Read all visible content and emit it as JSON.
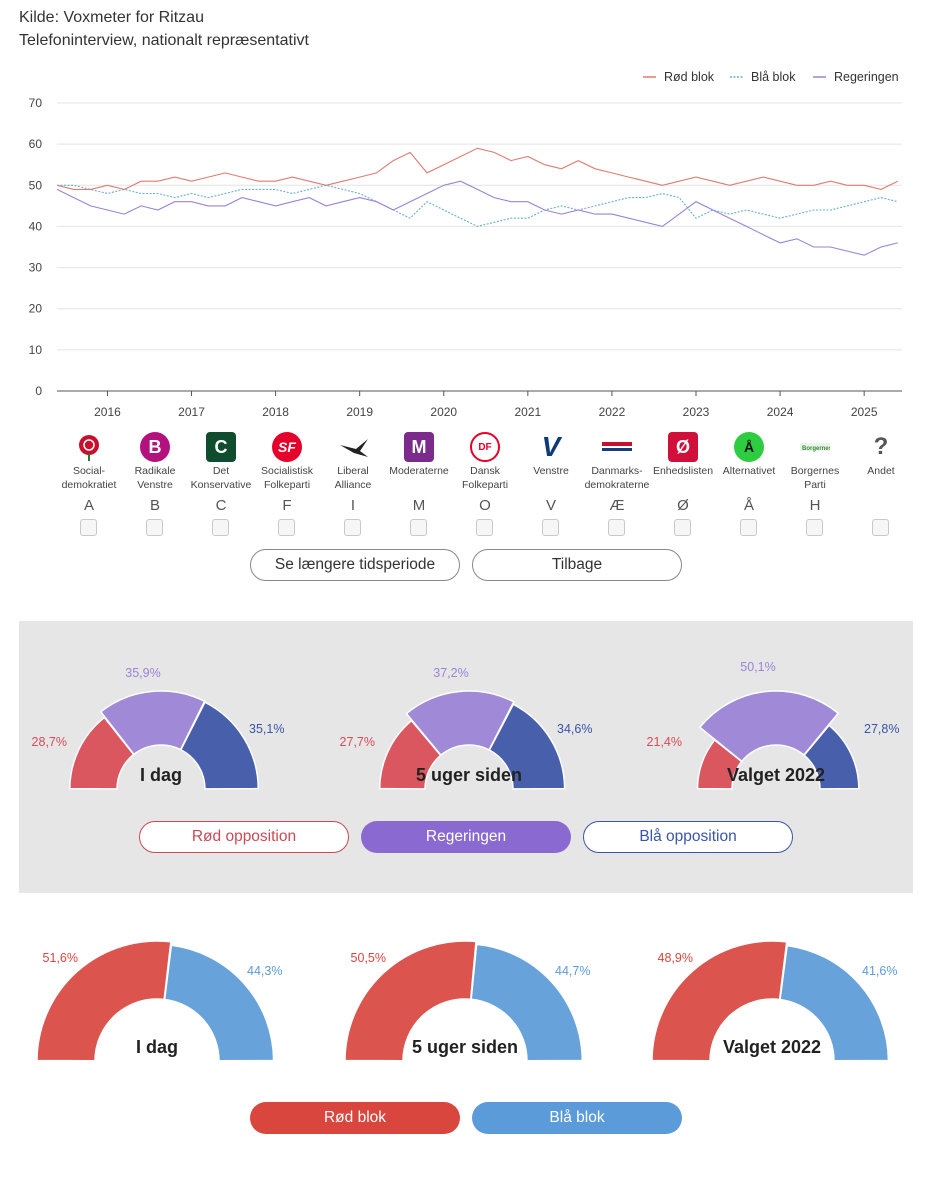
{
  "source": {
    "line1": "Kilde: Voxmeter for Ritzau",
    "line2": "Telefoninterview, nationalt repræsentativt"
  },
  "chart_data": {
    "type": "line",
    "title": "",
    "ylim": [
      0,
      70
    ],
    "yticks": [
      0,
      10,
      20,
      30,
      40,
      50,
      60,
      70
    ],
    "x_start": 2015.4,
    "x_end": 2025.45,
    "xticks": [
      2016,
      2017,
      2018,
      2019,
      2020,
      2021,
      2022,
      2023,
      2024,
      2025
    ],
    "grid": true,
    "legend_position": "top-right",
    "series": [
      {
        "name": "Rød blok",
        "color": "#e07b70",
        "x": [
          2015.4,
          2015.6,
          2015.8,
          2016.0,
          2016.2,
          2016.4,
          2016.6,
          2016.8,
          2017.0,
          2017.2,
          2017.4,
          2017.6,
          2017.8,
          2018.0,
          2018.2,
          2018.4,
          2018.6,
          2018.8,
          2019.0,
          2019.2,
          2019.4,
          2019.6,
          2019.8,
          2020.0,
          2020.2,
          2020.4,
          2020.6,
          2020.8,
          2021.0,
          2021.2,
          2021.4,
          2021.6,
          2021.8,
          2022.0,
          2022.2,
          2022.4,
          2022.6,
          2022.8,
          2023.0,
          2023.2,
          2023.4,
          2023.6,
          2023.8,
          2024.0,
          2024.2,
          2024.4,
          2024.6,
          2024.8,
          2025.0,
          2025.2,
          2025.4
        ],
        "values": [
          50,
          49,
          49,
          50,
          49,
          51,
          51,
          52,
          51,
          52,
          53,
          52,
          51,
          51,
          52,
          51,
          50,
          51,
          52,
          53,
          56,
          58,
          53,
          55,
          57,
          59,
          58,
          56,
          57,
          55,
          54,
          56,
          54,
          53,
          52,
          51,
          50,
          51,
          52,
          51,
          50,
          51,
          52,
          51,
          50,
          50,
          51,
          50,
          50,
          49,
          51
        ]
      },
      {
        "name": "Blå blok",
        "color": "#6aaed6",
        "x": [
          2015.4,
          2015.6,
          2015.8,
          2016.0,
          2016.2,
          2016.4,
          2016.6,
          2016.8,
          2017.0,
          2017.2,
          2017.4,
          2017.6,
          2017.8,
          2018.0,
          2018.2,
          2018.4,
          2018.6,
          2018.8,
          2019.0,
          2019.2,
          2019.4,
          2019.6,
          2019.8,
          2020.0,
          2020.2,
          2020.4,
          2020.6,
          2020.8,
          2021.0,
          2021.2,
          2021.4,
          2021.6,
          2021.8,
          2022.0,
          2022.2,
          2022.4,
          2022.6,
          2022.8,
          2023.0,
          2023.2,
          2023.4,
          2023.6,
          2023.8,
          2024.0,
          2024.2,
          2024.4,
          2024.6,
          2024.8,
          2025.0,
          2025.2,
          2025.4
        ],
        "values": [
          50,
          50,
          49,
          48,
          49,
          48,
          48,
          47,
          48,
          47,
          48,
          49,
          49,
          49,
          48,
          49,
          50,
          49,
          48,
          46,
          44,
          42,
          46,
          44,
          42,
          40,
          41,
          42,
          42,
          44,
          45,
          44,
          45,
          46,
          47,
          47,
          48,
          47,
          42,
          44,
          43,
          44,
          43,
          42,
          43,
          44,
          44,
          45,
          46,
          47,
          46
        ]
      },
      {
        "name": "Regeringen",
        "color": "#9b83d6",
        "x": [
          2015.4,
          2015.6,
          2015.8,
          2016.0,
          2016.2,
          2016.4,
          2016.6,
          2016.8,
          2017.0,
          2017.2,
          2017.4,
          2017.6,
          2017.8,
          2018.0,
          2018.2,
          2018.4,
          2018.6,
          2018.8,
          2019.0,
          2019.2,
          2019.4,
          2019.6,
          2019.8,
          2020.0,
          2020.2,
          2020.4,
          2020.6,
          2020.8,
          2021.0,
          2021.2,
          2021.4,
          2021.6,
          2021.8,
          2022.0,
          2022.2,
          2022.4,
          2022.6,
          2022.8,
          2023.0,
          2023.2,
          2023.4,
          2023.6,
          2023.8,
          2024.0,
          2024.2,
          2024.4,
          2024.6,
          2024.8,
          2025.0,
          2025.2,
          2025.4
        ],
        "values": [
          49,
          47,
          45,
          44,
          43,
          45,
          44,
          46,
          46,
          45,
          45,
          47,
          46,
          45,
          46,
          47,
          45,
          46,
          47,
          46,
          44,
          46,
          48,
          50,
          51,
          49,
          47,
          46,
          46,
          44,
          43,
          44,
          43,
          43,
          42,
          41,
          40,
          43,
          46,
          44,
          42,
          40,
          38,
          36,
          37,
          35,
          35,
          34,
          33,
          35,
          36
        ]
      }
    ]
  },
  "parties": [
    {
      "name": "Social-\ndemokratiet",
      "letter": "A",
      "logo": "rose-icon",
      "color": "#c8102e"
    },
    {
      "name": "Radikale\nVenstre",
      "letter": "B",
      "logo": "B",
      "color": "#b3127e"
    },
    {
      "name": "Det\nKonservative",
      "letter": "C",
      "logo": "C",
      "color": "#0f4d2e"
    },
    {
      "name": "Socialistisk\nFolkeparti",
      "letter": "F",
      "logo": "SF",
      "color": "#e4002b"
    },
    {
      "name": "Liberal\nAlliance",
      "letter": "I",
      "logo": "swallow-icon",
      "color": "#222222"
    },
    {
      "name": "Moderaterne",
      "letter": "M",
      "logo": "M",
      "color": "#7b2b8b"
    },
    {
      "name": "Dansk\nFolkeparti",
      "letter": "O",
      "logo": "DF",
      "color": "#e4002b"
    },
    {
      "name": "Venstre",
      "letter": "V",
      "logo": "V",
      "color": "#0d3b7a"
    },
    {
      "name": "Danmarks-\ndemokraterne",
      "letter": "Æ",
      "logo": "flag-icon",
      "color": "#c8102e"
    },
    {
      "name": "Enhedslisten",
      "letter": "Ø",
      "logo": "Ø",
      "color": "#d0103a"
    },
    {
      "name": "Alternativet",
      "letter": "Å",
      "logo": "Å",
      "color": "#2ecc40"
    },
    {
      "name": "Borgernes\nParti",
      "letter": "H",
      "logo": "leaf-icon",
      "color": "#3a8a3a"
    },
    {
      "name": "Andet",
      "letter": "",
      "logo": "?",
      "color": "#555555"
    }
  ],
  "buttons": {
    "longer": "Se længere tidsperiode",
    "back": "Tilbage"
  },
  "gov_gauges": {
    "colors": {
      "rod": "#d94b55",
      "reg": "#9b83d6",
      "bla": "#3b55a8"
    },
    "items": [
      {
        "label": "I dag",
        "rod": "28,7%",
        "reg": "35,9%",
        "bla": "35,1%",
        "v": [
          28.7,
          35.9,
          35.1
        ]
      },
      {
        "label": "5 uger siden",
        "rod": "27,7%",
        "reg": "37,2%",
        "bla": "34,6%",
        "v": [
          27.7,
          37.2,
          34.6
        ]
      },
      {
        "label": "Valget 2022",
        "rod": "21,4%",
        "reg": "50,1%",
        "bla": "27,8%",
        "v": [
          21.4,
          50.1,
          27.8
        ]
      }
    ],
    "legend": {
      "rod": "Rød opposition",
      "reg": "Regeringen",
      "bla": "Blå opposition"
    }
  },
  "bloc_gauges": {
    "colors": {
      "rod": "#d9463e",
      "bla": "#5b9bd9"
    },
    "items": [
      {
        "label": "I dag",
        "rod": "51,6%",
        "bla": "44,3%",
        "v": [
          51.6,
          44.3
        ]
      },
      {
        "label": "5 uger siden",
        "rod": "50,5%",
        "bla": "44,7%",
        "v": [
          50.5,
          44.7
        ]
      },
      {
        "label": "Valget 2022",
        "rod": "48,9%",
        "bla": "41,6%",
        "v": [
          48.9,
          41.6
        ]
      }
    ],
    "legend": {
      "rod": "Rød blok",
      "bla": "Blå blok"
    }
  }
}
